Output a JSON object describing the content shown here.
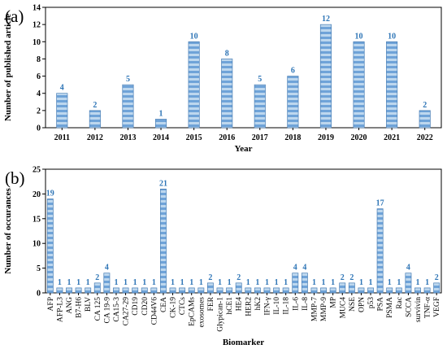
{
  "chart_data": [
    {
      "type": "bar",
      "panel_label": "(a)",
      "xlabel": "Year",
      "ylabel": "Number of published article",
      "ylim": [
        0,
        14
      ],
      "yticks": [
        0,
        2,
        4,
        6,
        8,
        10,
        12,
        14
      ],
      "grid": false,
      "categories": [
        "2011",
        "2012",
        "2013",
        "2014",
        "2015",
        "2016",
        "2017",
        "2018",
        "2019",
        "2020",
        "2021",
        "2022"
      ],
      "values": [
        4,
        2,
        5,
        1,
        10,
        8,
        5,
        6,
        12,
        10,
        10,
        2
      ],
      "data_labels": [
        "4",
        "2",
        "5",
        "1",
        "10",
        "8",
        "5",
        "6",
        "12",
        "10",
        "10",
        "2"
      ],
      "colors": {
        "bar_light": "#bdd7ee",
        "bar_dark": "#5b9bd5",
        "bar_edge": "#4a7fb5",
        "label": "#2e75b6"
      }
    },
    {
      "type": "bar",
      "panel_label": "(b)",
      "xlabel": "Biomarker",
      "ylabel": "Number of occurances",
      "ylim": [
        0,
        25
      ],
      "yticks": [
        0,
        5,
        10,
        15,
        20,
        25
      ],
      "grid": false,
      "categories": [
        "AFP",
        "AFP-L3",
        "ANG",
        "B7-H6",
        "BLV",
        "CA 125",
        "CA 19-9",
        "CA15-3",
        "CA27-29",
        "CD19",
        "CD20",
        "CD44V6",
        "CEA",
        "CK-19",
        "CTCs",
        "EpCAMs",
        "exosomes",
        "FER",
        "Glypican-1",
        "hCE1",
        "HE4",
        "HER2",
        "hK2",
        "IFN-γ",
        "IL-10",
        "IL-18",
        "IL-6",
        "IL-8",
        "MMP-7",
        "MMP-9",
        "MP",
        "MUC4",
        "NSE",
        "OPN",
        "p53",
        "PSA",
        "PSMA",
        "Rac",
        "SCCA",
        "survivin",
        "TNF-α",
        "VEGF"
      ],
      "values": [
        19,
        1,
        1,
        1,
        1,
        2,
        4,
        1,
        1,
        1,
        1,
        1,
        21,
        1,
        1,
        1,
        1,
        2,
        1,
        1,
        2,
        1,
        1,
        1,
        1,
        1,
        4,
        4,
        1,
        1,
        1,
        2,
        2,
        1,
        1,
        17,
        1,
        1,
        4,
        1,
        1,
        2
      ],
      "data_labels": [
        "19",
        "1",
        "1",
        "1",
        "1",
        "2",
        "4",
        "1",
        "1",
        "1",
        "1",
        "1",
        "21",
        "1",
        "1",
        "1",
        "1",
        "2",
        "1",
        "1",
        "2",
        "1",
        "1",
        "1",
        "1",
        "1",
        "4",
        "4",
        "1",
        "1",
        "1",
        "2",
        "2",
        "1",
        "1",
        "17",
        "1",
        "1",
        "4",
        "1",
        "1",
        "2"
      ],
      "colors": {
        "bar_light": "#bdd7ee",
        "bar_dark": "#5b9bd5",
        "bar_edge": "#4a7fb5",
        "label": "#2e75b6"
      }
    }
  ]
}
